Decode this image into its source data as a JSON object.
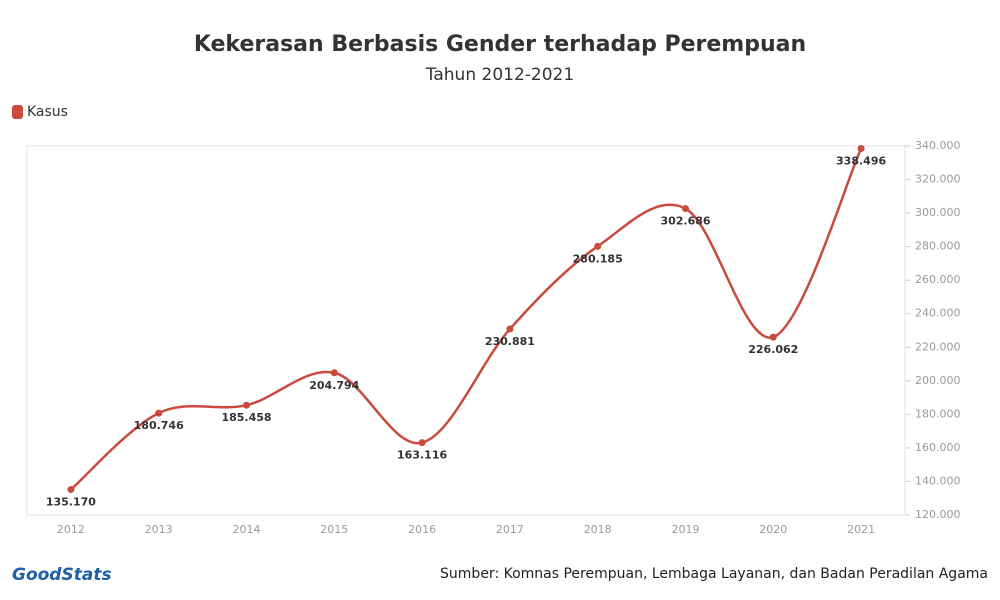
{
  "chart_data": {
    "type": "line",
    "title": "Kekerasan Berbasis Gender terhadap Perempuan",
    "subtitle": "Tahun 2012-2021",
    "categories": [
      "2012",
      "2013",
      "2014",
      "2015",
      "2016",
      "2017",
      "2018",
      "2019",
      "2020",
      "2021"
    ],
    "series": [
      {
        "name": "Kasus",
        "color": "#c94b3b",
        "values": [
          135170,
          180746,
          185458,
          204794,
          163116,
          230881,
          280185,
          302686,
          226062,
          338496
        ],
        "value_labels": [
          "135.170",
          "180.746",
          "185.458",
          "204.794",
          "163.116",
          "230.881",
          "280.185",
          "302.686",
          "226.062",
          "338.496"
        ]
      }
    ],
    "ylim": [
      120000,
      340000
    ],
    "yticks": [
      {
        "value": 120000,
        "label": "120.000"
      },
      {
        "value": 140000,
        "label": "140.000"
      },
      {
        "value": 160000,
        "label": "160.000"
      },
      {
        "value": 180000,
        "label": "180.000"
      },
      {
        "value": 200000,
        "label": "200.000"
      },
      {
        "value": 220000,
        "label": "220.000"
      },
      {
        "value": 240000,
        "label": "240.000"
      },
      {
        "value": 260000,
        "label": "260.000"
      },
      {
        "value": 280000,
        "label": "280.000"
      },
      {
        "value": 300000,
        "label": "300.000"
      },
      {
        "value": 320000,
        "label": "320.000"
      },
      {
        "value": 340000,
        "label": "340.000"
      }
    ],
    "y_axis_side": "right",
    "grid": false,
    "legend": "top-left",
    "source": "Sumber: Komnas Perempuan, Lembaga Layanan, dan Badan Peradilan Agama",
    "logo": "GoodStats"
  }
}
